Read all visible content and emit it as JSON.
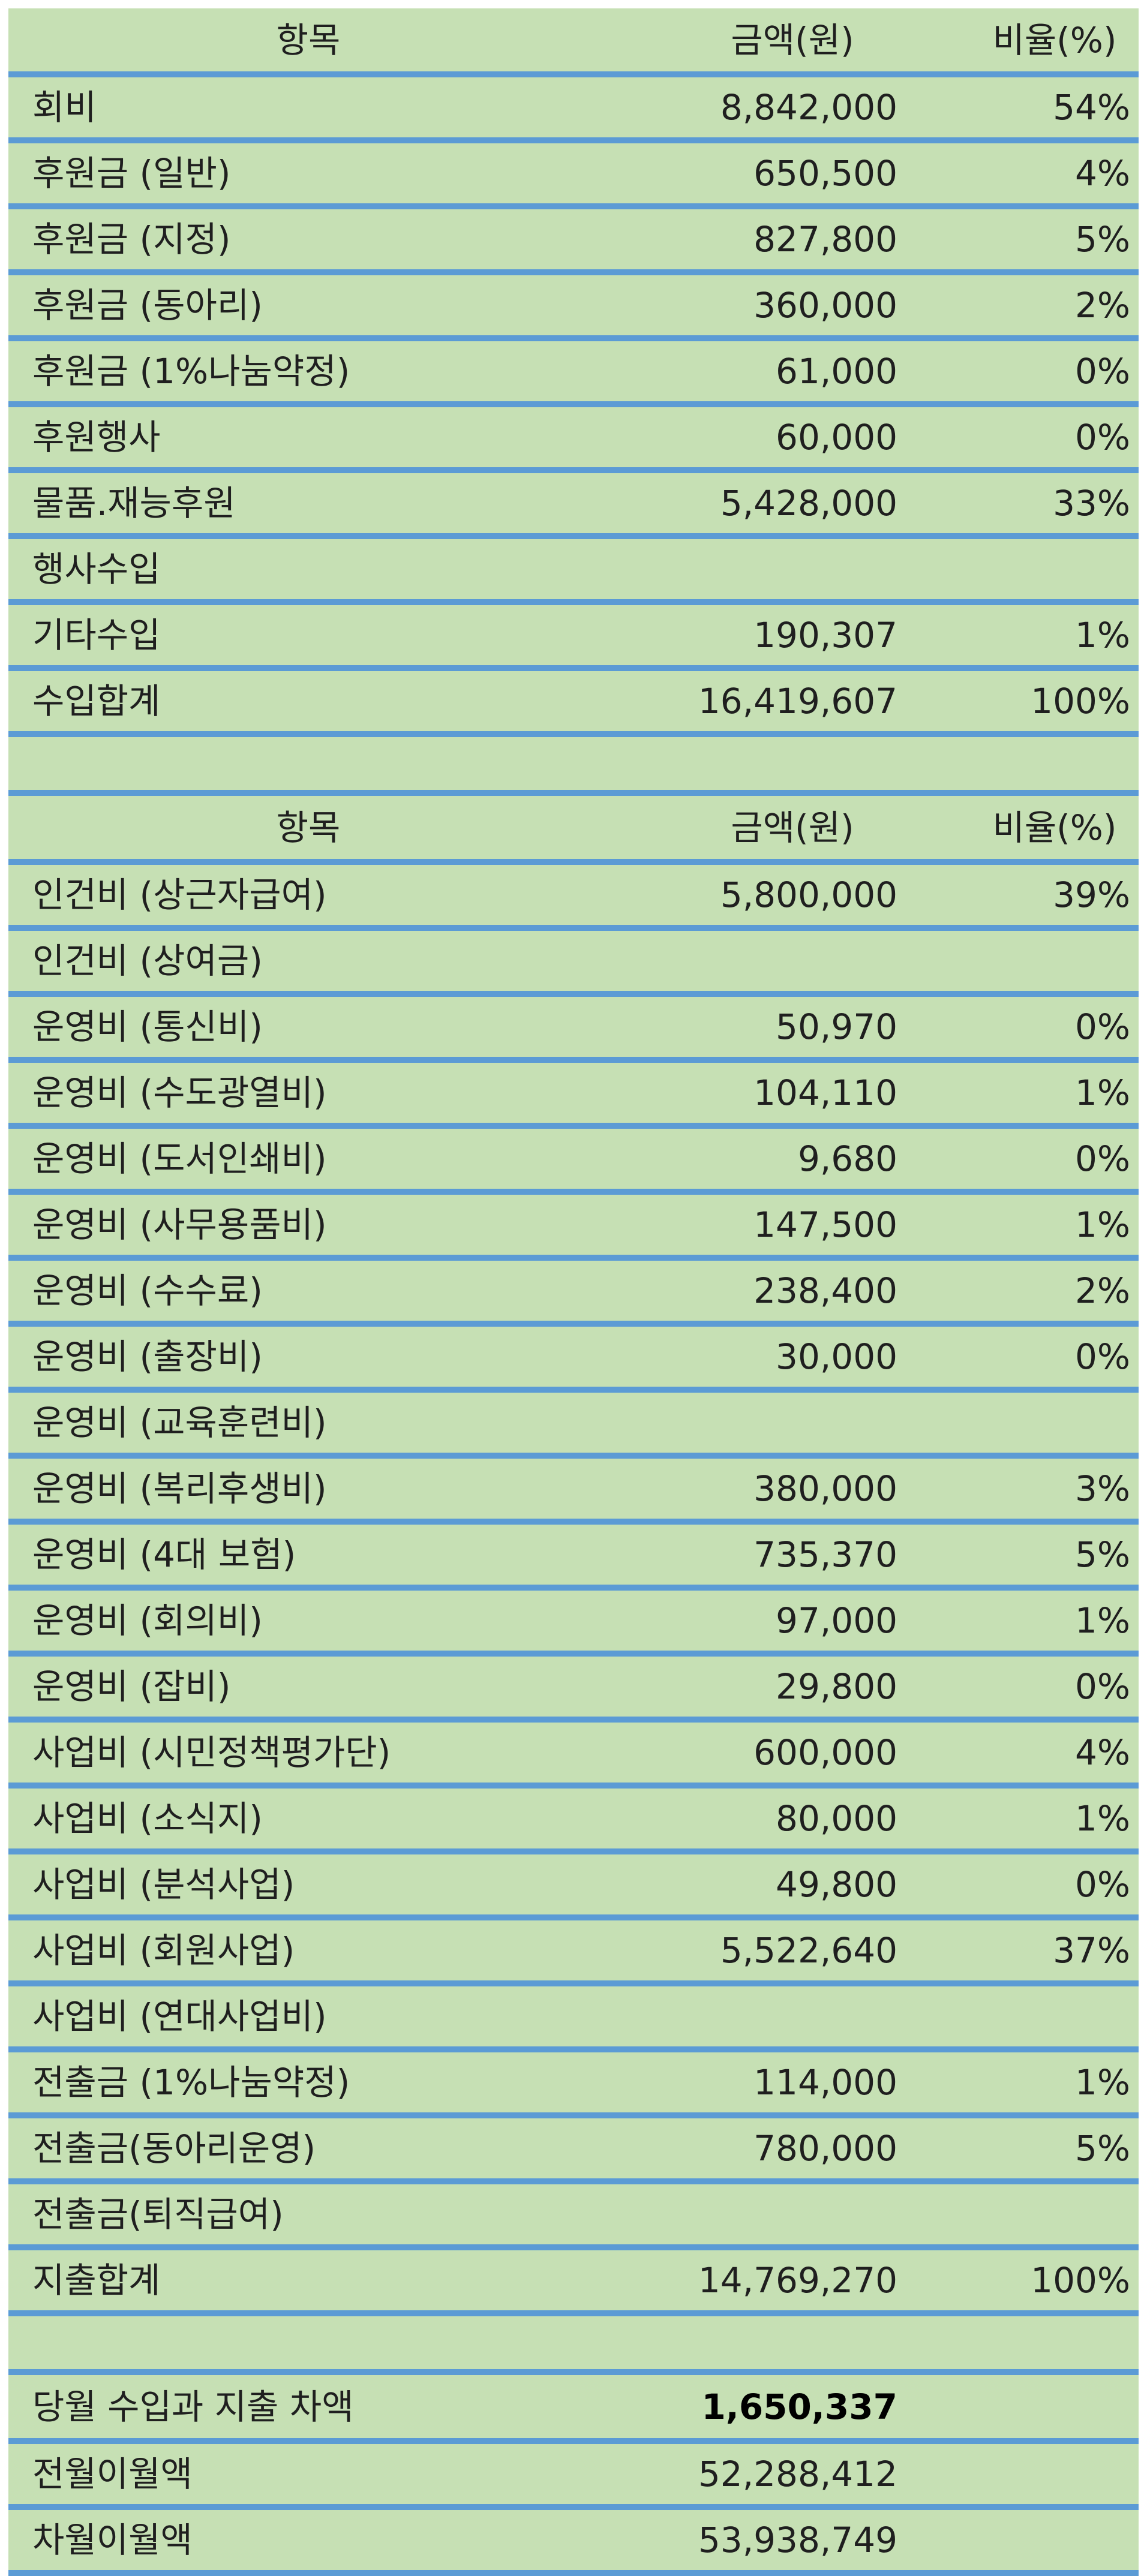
{
  "income": {
    "header": {
      "item": "항목",
      "amount": "금액(원)",
      "ratio": "비율(%)"
    },
    "rows": [
      {
        "item": "회비",
        "amount": "8,842,000",
        "ratio": "54%"
      },
      {
        "item": "후원금 (일반)",
        "amount": "650,500",
        "ratio": "4%"
      },
      {
        "item": "후원금 (지정)",
        "amount": "827,800",
        "ratio": "5%"
      },
      {
        "item": "후원금 (동아리)",
        "amount": "360,000",
        "ratio": "2%"
      },
      {
        "item": "후원금 (1%나눔약정)",
        "amount": "61,000",
        "ratio": "0%"
      },
      {
        "item": "후원행사",
        "amount": "60,000",
        "ratio": "0%"
      },
      {
        "item": "물품.재능후원",
        "amount": "5,428,000",
        "ratio": "33%"
      },
      {
        "item": "행사수입",
        "amount": "",
        "ratio": ""
      },
      {
        "item": "기타수입",
        "amount": "190,307",
        "ratio": "1%"
      },
      {
        "item": "수입합계",
        "amount": "16,419,607",
        "ratio": "100%"
      }
    ]
  },
  "expense": {
    "header": {
      "item": "항목",
      "amount": "금액(원)",
      "ratio": "비율(%)"
    },
    "rows": [
      {
        "item": "인건비 (상근자급여)",
        "amount": "5,800,000",
        "ratio": "39%"
      },
      {
        "item": "인건비 (상여금)",
        "amount": "",
        "ratio": ""
      },
      {
        "item": "운영비 (통신비)",
        "amount": "50,970",
        "ratio": "0%"
      },
      {
        "item": "운영비 (수도광열비)",
        "amount": "104,110",
        "ratio": "1%"
      },
      {
        "item": "운영비 (도서인쇄비)",
        "amount": "9,680",
        "ratio": "0%"
      },
      {
        "item": "운영비 (사무용품비)",
        "amount": "147,500",
        "ratio": "1%"
      },
      {
        "item": "운영비 (수수료)",
        "amount": "238,400",
        "ratio": "2%"
      },
      {
        "item": "운영비 (출장비)",
        "amount": "30,000",
        "ratio": "0%"
      },
      {
        "item": "운영비 (교육훈련비)",
        "amount": "",
        "ratio": ""
      },
      {
        "item": "운영비 (복리후생비)",
        "amount": "380,000",
        "ratio": "3%"
      },
      {
        "item": "운영비 (4대 보험)",
        "amount": "735,370",
        "ratio": "5%"
      },
      {
        "item": "운영비 (회의비)",
        "amount": "97,000",
        "ratio": "1%"
      },
      {
        "item": "운영비 (잡비)",
        "amount": "29,800",
        "ratio": "0%"
      },
      {
        "item": "사업비 (시민정책평가단)",
        "amount": "600,000",
        "ratio": "4%"
      },
      {
        "item": "사업비 (소식지)",
        "amount": "80,000",
        "ratio": "1%"
      },
      {
        "item": "사업비 (분석사업)",
        "amount": "49,800",
        "ratio": "0%"
      },
      {
        "item": "사업비 (회원사업)",
        "amount": "5,522,640",
        "ratio": "37%"
      },
      {
        "item": "사업비 (연대사업비)",
        "amount": "",
        "ratio": ""
      },
      {
        "item": "전출금 (1%나눔약정)",
        "amount": "114,000",
        "ratio": "1%"
      },
      {
        "item": "전출금(동아리운영)",
        "amount": "780,000",
        "ratio": "5%"
      },
      {
        "item": "전출금(퇴직급여)",
        "amount": "",
        "ratio": ""
      },
      {
        "item": "지출합계",
        "amount": "14,769,270",
        "ratio": "100%"
      }
    ]
  },
  "balance": {
    "rows": [
      {
        "item": "당월 수입과 지출 차액",
        "amount": "1,650,337",
        "ratio": ""
      },
      {
        "item": "전월이월액",
        "amount": "52,288,412",
        "ratio": ""
      },
      {
        "item": "차월이월액",
        "amount": "53,938,749",
        "ratio": ""
      }
    ]
  },
  "colors": {
    "cell_background": "#c6e0b4",
    "row_divider": "#5b9bd5"
  }
}
